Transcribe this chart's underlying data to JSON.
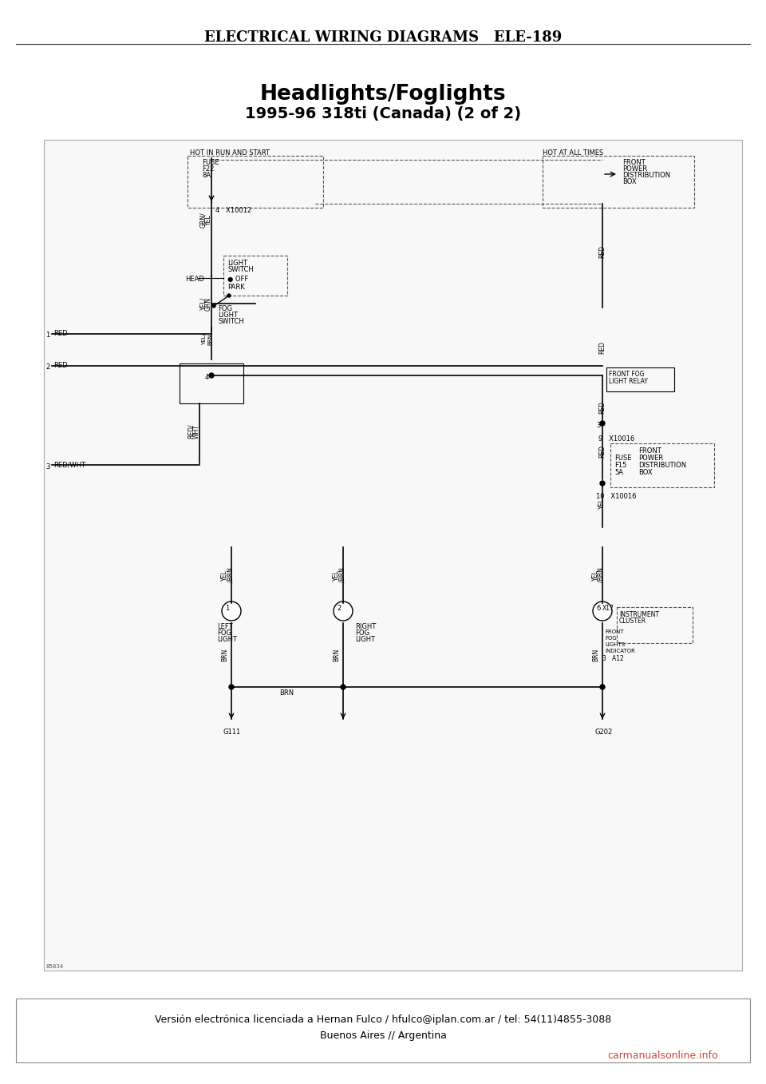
{
  "title_main": "Headlights/Foglights",
  "title_sub": "1995-96 318ti (Canada) (2 of 2)",
  "header_right": "ELECTRICAL WIRING DIAGRAMS   ELE-189",
  "footer_line1": "Versión electrónica licenciada a Hernan Fulco / hfulco@iplan.com.ar / tel: 54(11)4855-3088",
  "footer_line2": "Buenos Aires // Argentina",
  "footer_watermark": "carmanualsonline.info",
  "page_bg": "#ffffff",
  "diagram_bg": "#f5f5f5",
  "line_color": "#000000",
  "dashed_color": "#555555",
  "label_color": "#000000",
  "diagram_border_color": "#888888"
}
